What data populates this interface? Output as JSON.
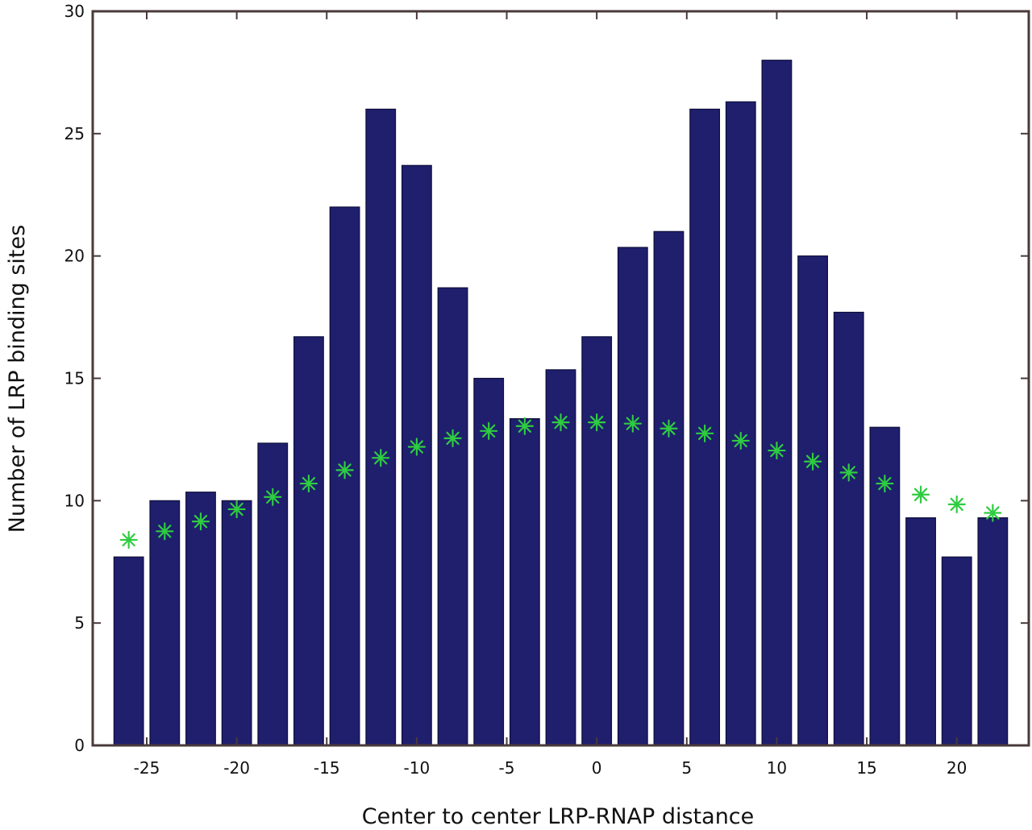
{
  "chart_data": {
    "type": "bar",
    "title": "",
    "xlabel": "Center to center LRP-RNAP distance",
    "ylabel": "Number of LRP binding sites",
    "xlim": [
      -28,
      24
    ],
    "ylim": [
      0,
      30
    ],
    "xticks": [
      -25,
      -20,
      -15,
      -10,
      -5,
      0,
      5,
      10,
      15,
      20
    ],
    "yticks": [
      0,
      5,
      10,
      15,
      20,
      25,
      30
    ],
    "grid": false,
    "x": [
      -26,
      -24,
      -22,
      -20,
      -18,
      -16,
      -14,
      -12,
      -10,
      -8,
      -6,
      -4,
      -2,
      0,
      2,
      4,
      6,
      8,
      10,
      12,
      14,
      16,
      18,
      20,
      22
    ],
    "series": [
      {
        "type": "bar",
        "values": [
          7.7,
          10.0,
          10.35,
          10.0,
          12.35,
          16.7,
          22.0,
          26.0,
          23.7,
          18.7,
          15.0,
          13.35,
          15.35,
          16.7,
          20.35,
          21.0,
          26.0,
          26.3,
          28.0,
          20.0,
          17.7,
          13.0,
          9.3,
          7.7,
          9.3
        ],
        "color": "#1f1f6e"
      },
      {
        "type": "scatter",
        "marker": "*",
        "values": [
          8.4,
          8.75,
          9.15,
          9.65,
          10.15,
          10.7,
          11.25,
          11.75,
          12.2,
          12.55,
          12.85,
          13.05,
          13.2,
          13.2,
          13.15,
          12.95,
          12.75,
          12.45,
          12.05,
          11.6,
          11.15,
          10.7,
          10.25,
          9.85,
          9.5
        ],
        "color": "#2ecc40"
      }
    ],
    "axis_color": "#4a3a3a"
  }
}
